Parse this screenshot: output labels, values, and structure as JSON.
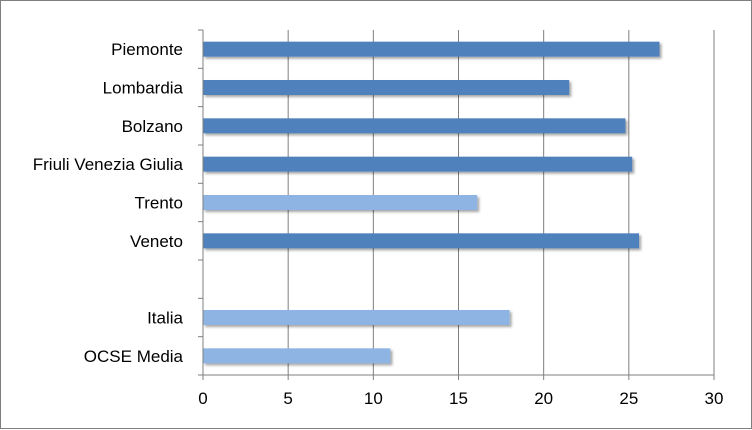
{
  "chart_data": {
    "type": "bar",
    "orientation": "horizontal",
    "title": "",
    "xlabel": "",
    "ylabel": "",
    "xlim": [
      0,
      30
    ],
    "xticks": [
      0,
      5,
      10,
      15,
      20,
      25,
      30
    ],
    "grid": "vertical",
    "legend": "none",
    "categories": [
      "Piemonte",
      "Lombardia",
      "Bolzano",
      "Friuli Venezia Giulia",
      "Trento",
      "Veneto",
      "",
      "Italia",
      "OCSE Media"
    ],
    "values": [
      26.8,
      21.5,
      24.8,
      25.2,
      16.1,
      25.6,
      null,
      18.0,
      11.0
    ],
    "bar_colors": [
      "#4f81bd",
      "#4f81bd",
      "#4f81bd",
      "#4f81bd",
      "#8eb4e3",
      "#4f81bd",
      null,
      "#8eb4e3",
      "#8eb4e3"
    ]
  }
}
